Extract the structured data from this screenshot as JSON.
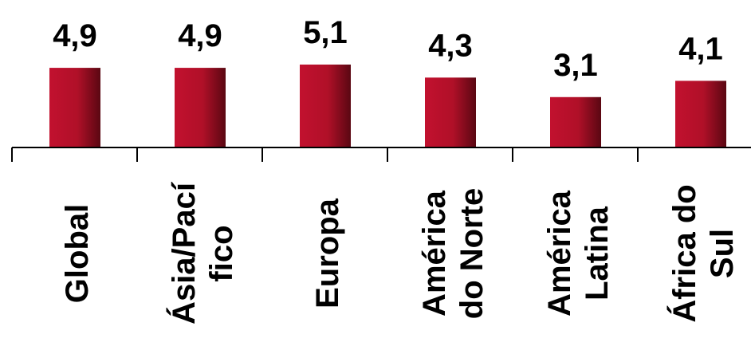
{
  "chart_data": {
    "type": "bar",
    "categories": [
      [
        "Global"
      ],
      [
        "Ásia/Pací",
        "fico"
      ],
      [
        "Europa"
      ],
      [
        "América",
        "do Norte"
      ],
      [
        "América",
        "Latina"
      ],
      [
        "África do",
        "Sul"
      ]
    ],
    "values": [
      4.9,
      4.9,
      5.1,
      4.3,
      3.1,
      4.1
    ],
    "value_labels": [
      "4,9",
      "4,9",
      "5,1",
      "4,3",
      "3,1",
      "4,1"
    ],
    "title": "",
    "xlabel": "",
    "ylabel": "",
    "ylim": [
      0,
      5.1
    ],
    "grid": false,
    "legend": "none",
    "bar_color": "#c2112f",
    "bar_color_dark": "#5a0712"
  }
}
